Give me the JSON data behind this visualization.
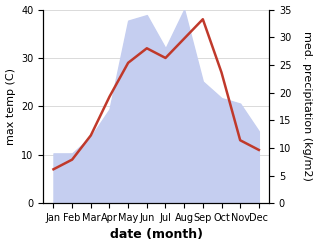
{
  "months": [
    "Jan",
    "Feb",
    "Mar",
    "Apr",
    "May",
    "Jun",
    "Jul",
    "Aug",
    "Sep",
    "Oct",
    "Nov",
    "Dec"
  ],
  "temperature": [
    7,
    9,
    14,
    22,
    29,
    32,
    30,
    34,
    38,
    27,
    13,
    11
  ],
  "precipitation": [
    9,
    9,
    12,
    17,
    33,
    34,
    28,
    35,
    22,
    19,
    18,
    13
  ],
  "temp_color": "#c0392b",
  "precip_fill_color": "#c5cef0",
  "xlabel": "date (month)",
  "ylabel_left": "max temp (C)",
  "ylabel_right": "med. precipitation (kg/m2)",
  "ylim_left": [
    0,
    40
  ],
  "ylim_right": [
    0,
    35
  ],
  "yticks_left": [
    0,
    10,
    20,
    30,
    40
  ],
  "yticks_right": [
    0,
    5,
    10,
    15,
    20,
    25,
    30,
    35
  ],
  "bg_color": "#ffffff",
  "temp_linewidth": 1.8,
  "xlabel_fontsize": 9,
  "ylabel_fontsize": 8,
  "tick_fontsize": 7
}
